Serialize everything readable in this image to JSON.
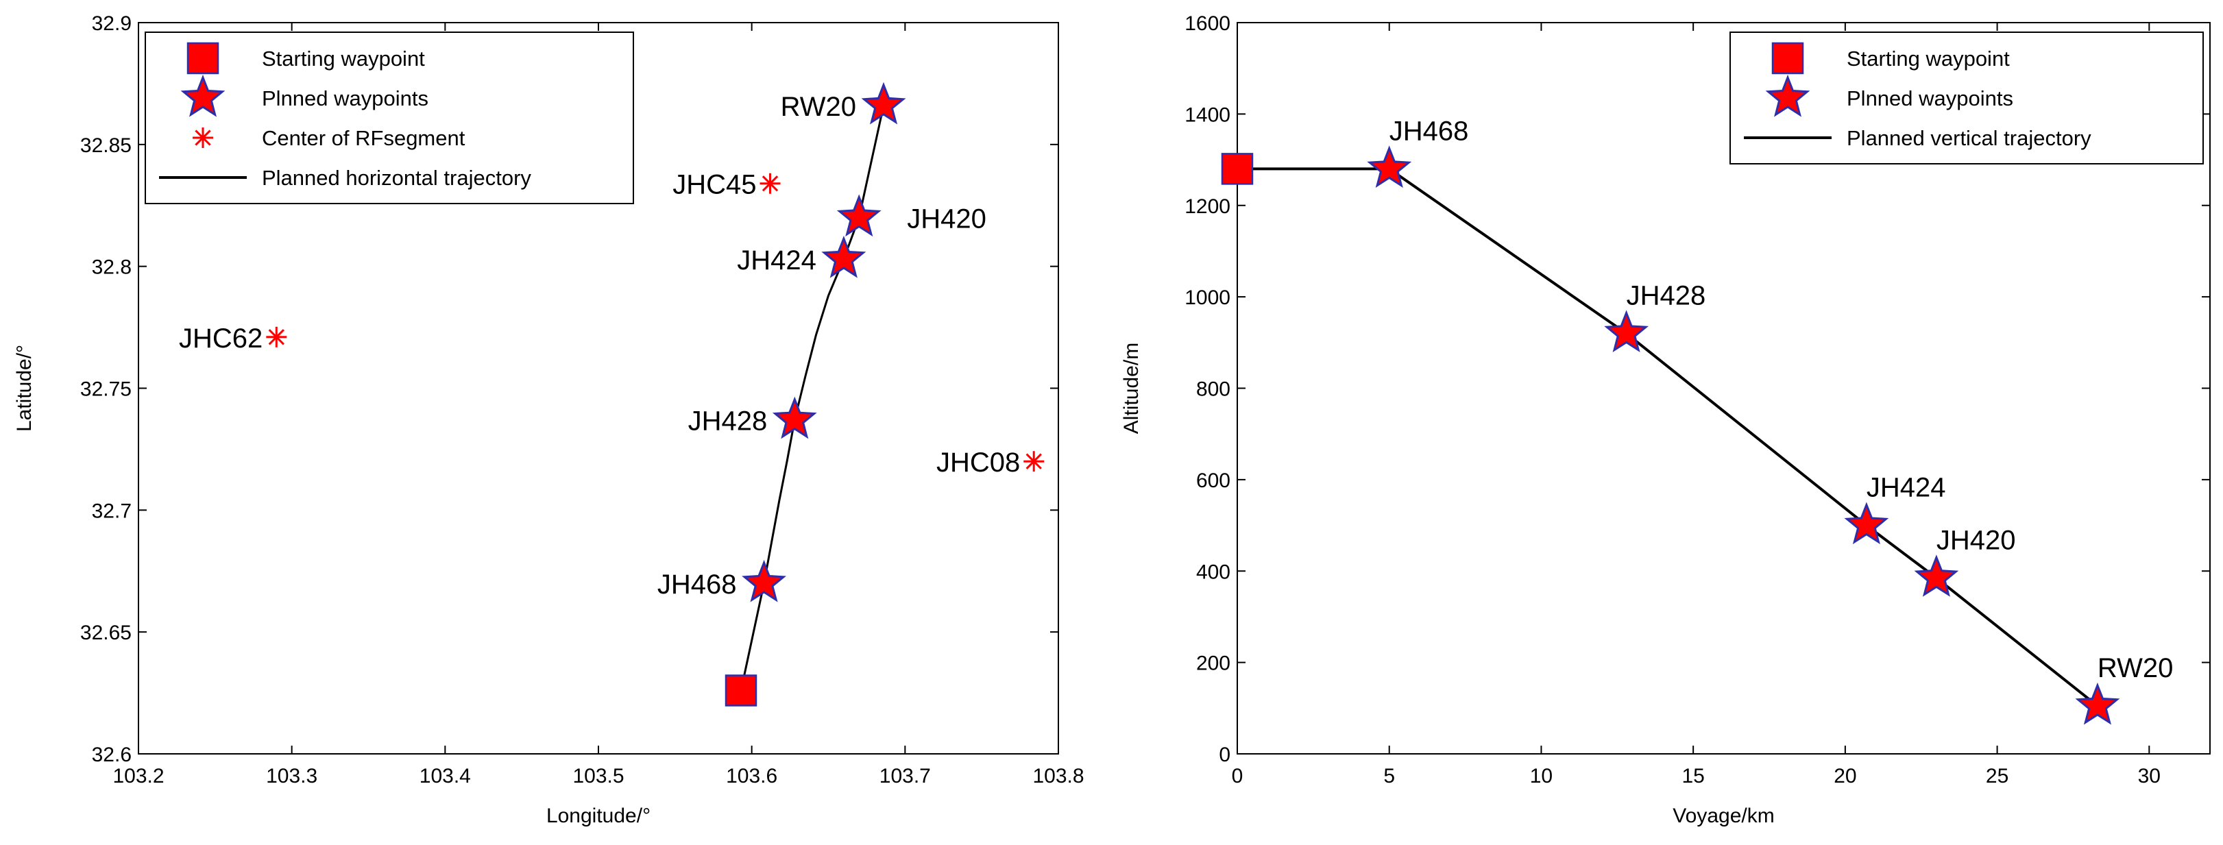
{
  "colors": {
    "marker_fill": "#ff0000",
    "marker_edge": "#2e2eaa",
    "line": "#000000",
    "axis": "#000000"
  },
  "chart_data": [
    {
      "type": "scatter",
      "xlabel": "Longitude/°",
      "ylabel": "Latitude/°",
      "xlim": [
        103.2,
        103.8
      ],
      "ylim": [
        32.6,
        32.9
      ],
      "xticks": [
        "103.2",
        "103.3",
        "103.4",
        "103.5",
        "103.6",
        "103.7",
        "103.8"
      ],
      "yticks": [
        "32.6",
        "32.65",
        "32.7",
        "32.75",
        "32.8",
        "32.85",
        "32.9"
      ],
      "legend": {
        "position": "top-left",
        "entries": [
          "Starting waypoint",
          "Plnned waypoints",
          "Center of RFsegment",
          "Planned horizontal trajectory"
        ]
      },
      "start": {
        "x": 103.593,
        "y": 32.626
      },
      "waypoints": [
        {
          "name": "JH468",
          "x": 103.608,
          "y": 32.67
        },
        {
          "name": "JH428",
          "x": 103.628,
          "y": 32.737
        },
        {
          "name": "JH424",
          "x": 103.66,
          "y": 32.803
        },
        {
          "name": "JH420",
          "x": 103.67,
          "y": 32.82
        },
        {
          "name": "RW20",
          "x": 103.686,
          "y": 32.866
        }
      ],
      "centers": [
        {
          "name": "JHC62",
          "x": 103.29,
          "y": 32.771
        },
        {
          "name": "JHC45",
          "x": 103.612,
          "y": 32.834
        },
        {
          "name": "JHC08",
          "x": 103.784,
          "y": 32.72
        }
      ],
      "trajectory": [
        [
          103.593,
          32.626
        ],
        [
          103.608,
          32.67
        ],
        [
          103.613,
          32.687
        ],
        [
          103.618,
          32.704
        ],
        [
          103.623,
          32.72
        ],
        [
          103.628,
          32.737
        ],
        [
          103.635,
          32.755
        ],
        [
          103.642,
          32.772
        ],
        [
          103.65,
          32.788
        ],
        [
          103.66,
          32.803
        ],
        [
          103.67,
          32.82
        ],
        [
          103.678,
          32.843
        ],
        [
          103.686,
          32.866
        ]
      ]
    },
    {
      "type": "line",
      "xlabel": "Voyage/km",
      "ylabel": "Altitude/m",
      "xlim": [
        0,
        32
      ],
      "ylim": [
        0,
        1600
      ],
      "xticks": [
        "0",
        "5",
        "10",
        "15",
        "20",
        "25",
        "30"
      ],
      "yticks": [
        "0",
        "200",
        "400",
        "600",
        "800",
        "1000",
        "1200",
        "1400",
        "1600"
      ],
      "legend": {
        "position": "top-right",
        "entries": [
          "Starting waypoint",
          "Plnned waypoints",
          "Planned vertical trajectory"
        ]
      },
      "start": {
        "x": 0,
        "y": 1280
      },
      "waypoints": [
        {
          "name": "JH468",
          "x": 5,
          "y": 1280
        },
        {
          "name": "JH428",
          "x": 12.8,
          "y": 920
        },
        {
          "name": "JH424",
          "x": 20.7,
          "y": 500
        },
        {
          "name": "JH420",
          "x": 23,
          "y": 385
        },
        {
          "name": "RW20",
          "x": 28.3,
          "y": 105
        }
      ],
      "trajectory": [
        [
          0,
          1280
        ],
        [
          5,
          1280
        ],
        [
          12.8,
          920
        ],
        [
          20.7,
          500
        ],
        [
          23,
          385
        ],
        [
          28.3,
          105
        ]
      ]
    }
  ]
}
